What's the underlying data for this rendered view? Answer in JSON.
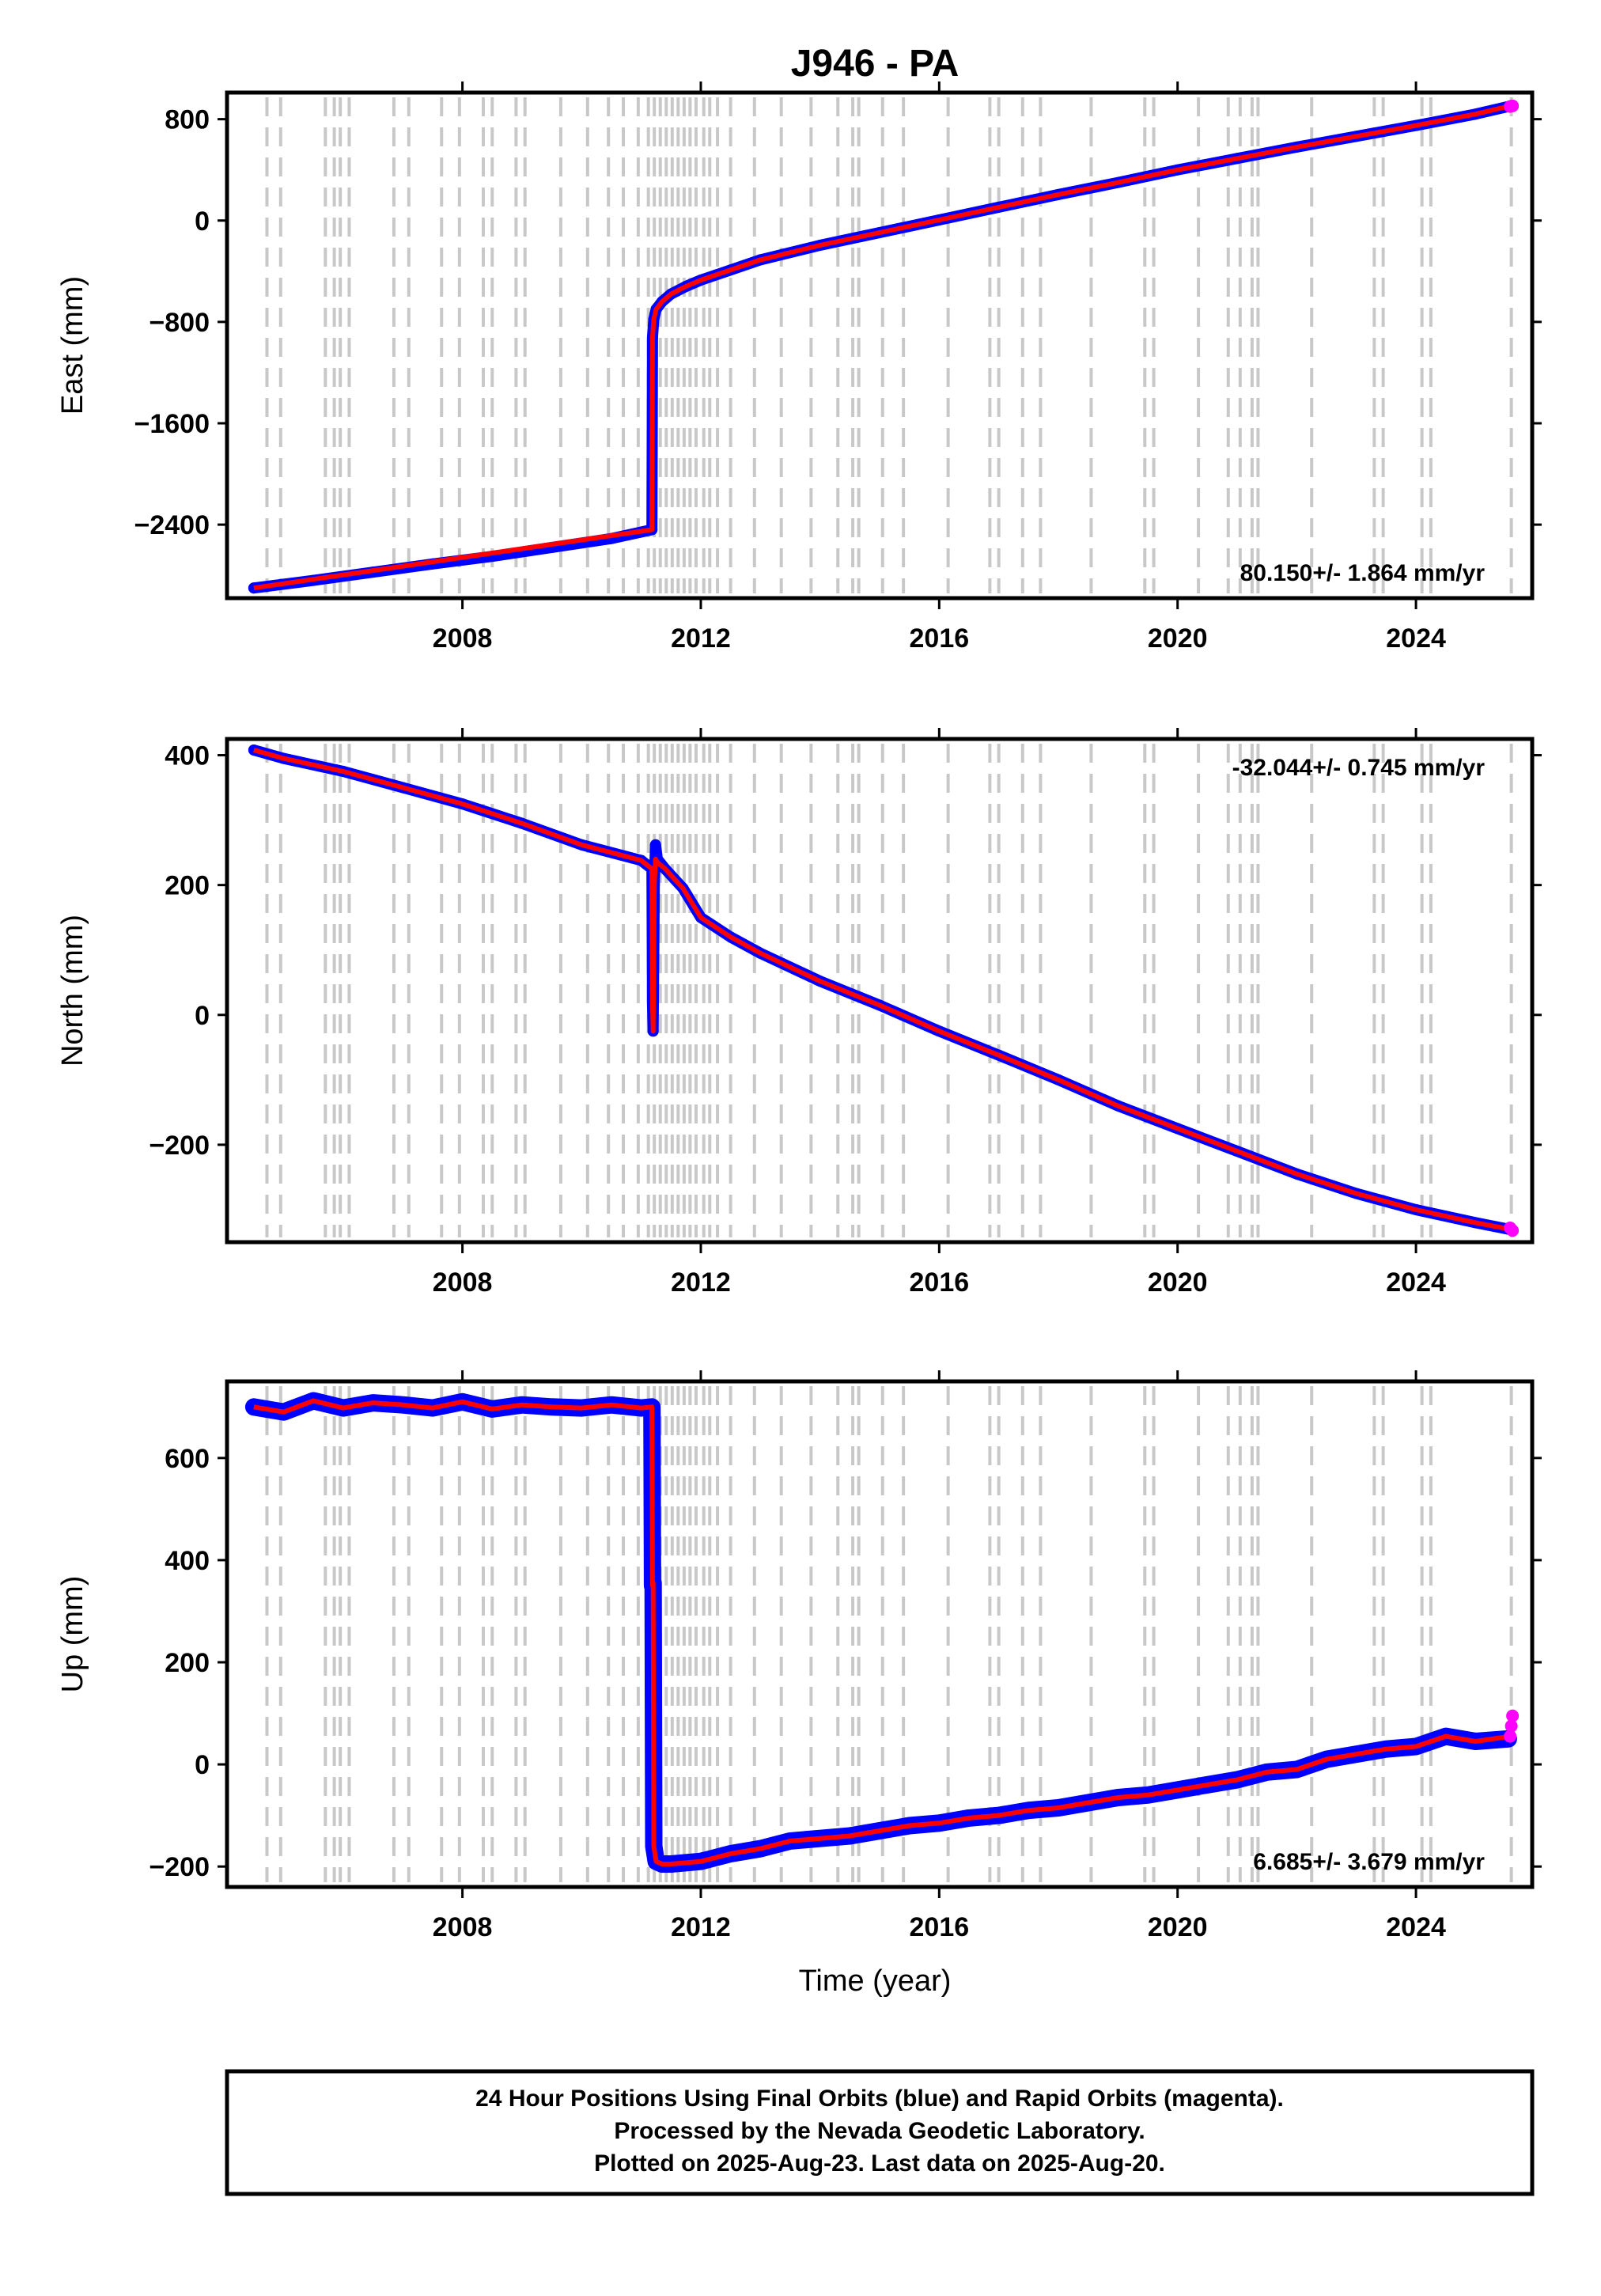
{
  "chart_data": {
    "type": "scatter",
    "title": "J946 - PA",
    "xlabel": "Time (year)",
    "x_ticks": [
      2008,
      2012,
      2016,
      2020,
      2024
    ],
    "xlim": [
      2004.05,
      2025.95
    ],
    "event_lines": [
      2004.72,
      2004.95,
      2005.7,
      2005.85,
      2005.95,
      2006.1,
      2006.85,
      2007.1,
      2007.65,
      2007.95,
      2008.35,
      2008.5,
      2008.9,
      2009.05,
      2009.65,
      2010.1,
      2010.45,
      2010.7,
      2010.95,
      2011.12,
      2011.22,
      2011.32,
      2011.42,
      2011.52,
      2011.62,
      2011.72,
      2011.82,
      2011.92,
      2012.05,
      2012.15,
      2012.28,
      2012.5,
      2012.9,
      2013.35,
      2013.85,
      2014.3,
      2014.55,
      2014.65,
      2015.05,
      2015.4,
      2016.15,
      2016.85,
      2017.0,
      2017.4,
      2017.7,
      2018.55,
      2019.45,
      2019.6,
      2020.35,
      2020.85,
      2021.05,
      2021.25,
      2021.35,
      2022.25,
      2023.3,
      2023.45,
      2024.1,
      2024.25,
      2025.6
    ],
    "panels": [
      {
        "name": "east",
        "ylabel": "East (mm)",
        "ylim": [
          -2980,
          1010
        ],
        "y_ticks": [
          800,
          0,
          -800,
          -1600,
          -2400
        ],
        "y_tick_labels": [
          "800",
          "0",
          "−800",
          "−1600",
          "−2400"
        ],
        "rate_text": "80.150+/- 1.864 mm/yr",
        "rate_position": "bottom-right",
        "final_orbits_series": {
          "name": "Final Orbits",
          "color": "#0000ff",
          "x": [
            2004.5,
            2005.5,
            2006.5,
            2007.5,
            2008.5,
            2009.5,
            2010.5,
            2011.18,
            2011.19,
            2011.21,
            2011.25,
            2011.35,
            2011.5,
            2011.75,
            2012.0,
            2012.5,
            2013.0,
            2014.0,
            2015.0,
            2016.0,
            2017.0,
            2018.0,
            2019.0,
            2020.0,
            2021.0,
            2022.0,
            2023.0,
            2024.0,
            2025.0,
            2025.55
          ],
          "y": [
            -2900,
            -2840,
            -2775,
            -2710,
            -2650,
            -2580,
            -2510,
            -2440,
            -920,
            -780,
            -700,
            -640,
            -580,
            -520,
            -470,
            -390,
            -310,
            -195,
            -95,
            5,
            105,
            205,
            300,
            400,
            490,
            580,
            665,
            750,
            840,
            900
          ]
        },
        "fit_series": {
          "name": "Model fit",
          "color": "#ff0000",
          "x": [
            2004.5,
            2011.18,
            2011.19,
            2011.21,
            2011.25,
            2011.35,
            2011.5,
            2011.75,
            2012.0,
            2012.5,
            2013.0,
            2014.0,
            2015.0,
            2016.0,
            2017.0,
            2018.0,
            2019.0,
            2020.0,
            2021.0,
            2022.0,
            2023.0,
            2024.0,
            2025.0,
            2025.58
          ],
          "y": [
            -2900,
            -2440,
            -920,
            -780,
            -700,
            -640,
            -580,
            -520,
            -470,
            -390,
            -310,
            -195,
            -95,
            5,
            105,
            205,
            300,
            400,
            490,
            580,
            665,
            750,
            840,
            905
          ]
        },
        "rapid_orbits_series": {
          "name": "Rapid Orbits",
          "color": "#ff00ff",
          "x": [
            2025.58,
            2025.62
          ],
          "y": [
            900,
            905
          ]
        }
      },
      {
        "name": "north",
        "ylabel": "North (mm)",
        "ylim": [
          -350,
          425
        ],
        "y_ticks": [
          400,
          200,
          0,
          -200
        ],
        "y_tick_labels": [
          "400",
          "200",
          "0",
          "−200"
        ],
        "rate_text": "-32.044+/- 0.745 mm/yr",
        "rate_position": "top-right",
        "final_orbits_series": {
          "name": "Final Orbits",
          "color": "#0000ff",
          "x": [
            2004.5,
            2005.0,
            2006.0,
            2007.0,
            2008.0,
            2009.0,
            2010.0,
            2011.0,
            2011.18,
            2011.19,
            2011.2,
            2011.21,
            2011.22,
            2011.24,
            2011.27,
            2011.4,
            2011.7,
            2012.0,
            2012.5,
            2013.0,
            2014.0,
            2015.0,
            2016.0,
            2017.0,
            2018.0,
            2019.0,
            2020.0,
            2021.0,
            2022.0,
            2023.0,
            2024.0,
            2025.0,
            2025.55
          ],
          "y": [
            408,
            395,
            375,
            350,
            325,
            295,
            262,
            238,
            225,
            15,
            -25,
            95,
            200,
            262,
            240,
            225,
            195,
            150,
            120,
            95,
            52,
            15,
            -25,
            -62,
            -100,
            -140,
            -175,
            -210,
            -245,
            -275,
            -300,
            -320,
            -330
          ]
        },
        "fit_series": {
          "name": "Model fit",
          "color": "#ff0000",
          "x": [
            2004.5,
            2005.0,
            2006.0,
            2007.0,
            2008.0,
            2009.0,
            2010.0,
            2011.0,
            2011.18,
            2011.19,
            2011.2,
            2011.21,
            2011.22,
            2011.24,
            2011.27,
            2011.4,
            2011.7,
            2012.0,
            2012.5,
            2013.0,
            2014.0,
            2015.0,
            2016.0,
            2017.0,
            2018.0,
            2019.0,
            2020.0,
            2021.0,
            2022.0,
            2023.0,
            2024.0,
            2025.0,
            2025.58
          ],
          "y": [
            408,
            395,
            375,
            350,
            325,
            295,
            262,
            238,
            225,
            15,
            -25,
            95,
            200,
            240,
            235,
            225,
            195,
            150,
            120,
            95,
            52,
            15,
            -25,
            -62,
            -100,
            -140,
            -175,
            -210,
            -245,
            -275,
            -300,
            -320,
            -330
          ]
        },
        "rapid_orbits_series": {
          "name": "Rapid Orbits",
          "color": "#ff00ff",
          "x": [
            2025.58,
            2025.62
          ],
          "y": [
            -328,
            -332
          ]
        }
      },
      {
        "name": "up",
        "ylabel": "Up (mm)",
        "ylim": [
          -240,
          750
        ],
        "y_ticks": [
          600,
          400,
          200,
          0,
          -200
        ],
        "y_tick_labels": [
          "600",
          "400",
          "200",
          "0",
          "−200"
        ],
        "rate_text": "6.685+/- 3.679 mm/yr",
        "rate_position": "bottom-right",
        "final_orbits_series": {
          "name": "Final Orbits",
          "color": "#0000ff",
          "x": [
            2004.5,
            2005.0,
            2005.5,
            2006.0,
            2006.5,
            2007.0,
            2007.5,
            2008.0,
            2008.5,
            2009.0,
            2009.5,
            2010.0,
            2010.5,
            2011.0,
            2011.18,
            2011.19,
            2011.2,
            2011.21,
            2011.25,
            2011.35,
            2011.5,
            2012.0,
            2012.5,
            2013.0,
            2013.5,
            2014.0,
            2014.5,
            2015.0,
            2015.5,
            2016.0,
            2016.5,
            2017.0,
            2017.5,
            2018.0,
            2018.5,
            2019.0,
            2019.5,
            2020.0,
            2020.5,
            2021.0,
            2021.5,
            2022.0,
            2022.5,
            2023.0,
            2023.5,
            2024.0,
            2024.5,
            2025.0,
            2025.55
          ],
          "y": [
            700,
            690,
            712,
            698,
            708,
            704,
            698,
            710,
            696,
            704,
            700,
            698,
            704,
            698,
            700,
            350,
            355,
            -160,
            -190,
            -195,
            -195,
            -190,
            -175,
            -165,
            -150,
            -145,
            -140,
            -130,
            -120,
            -115,
            -105,
            -100,
            -90,
            -85,
            -75,
            -65,
            -60,
            -50,
            -40,
            -30,
            -15,
            -10,
            10,
            20,
            30,
            35,
            55,
            45,
            50
          ]
        },
        "fit_series": {
          "name": "Model fit",
          "color": "#ff0000",
          "x": [
            2004.5,
            2005.0,
            2005.5,
            2006.0,
            2006.5,
            2007.0,
            2007.5,
            2008.0,
            2008.5,
            2009.0,
            2009.5,
            2010.0,
            2010.5,
            2011.0,
            2011.18,
            2011.19,
            2011.2,
            2011.21,
            2011.25,
            2011.35,
            2011.5,
            2012.0,
            2012.5,
            2013.0,
            2013.5,
            2014.0,
            2014.5,
            2015.0,
            2015.5,
            2016.0,
            2016.5,
            2017.0,
            2017.5,
            2018.0,
            2018.5,
            2019.0,
            2019.5,
            2020.0,
            2020.5,
            2021.0,
            2021.5,
            2022.0,
            2022.5,
            2023.0,
            2023.5,
            2024.0,
            2024.5,
            2025.0,
            2025.58
          ],
          "y": [
            700,
            690,
            712,
            698,
            708,
            704,
            698,
            710,
            696,
            704,
            700,
            698,
            704,
            698,
            700,
            350,
            355,
            -160,
            -190,
            -195,
            -195,
            -190,
            -175,
            -165,
            -150,
            -145,
            -140,
            -130,
            -120,
            -115,
            -105,
            -100,
            -90,
            -85,
            -75,
            -65,
            -60,
            -50,
            -40,
            -30,
            -15,
            -10,
            10,
            20,
            30,
            35,
            55,
            45,
            55
          ]
        },
        "rapid_orbits_series": {
          "name": "Rapid Orbits",
          "color": "#ff00ff",
          "x": [
            2025.58,
            2025.6,
            2025.62
          ],
          "y": [
            55,
            75,
            95
          ]
        }
      }
    ]
  },
  "caption": {
    "line1": "24 Hour Positions Using Final Orbits (blue) and Rapid Orbits (magenta).",
    "line2": "Processed by the Nevada Geodetic Laboratory.",
    "line3": "Plotted on 2025-Aug-23. Last data on 2025-Aug-20."
  }
}
